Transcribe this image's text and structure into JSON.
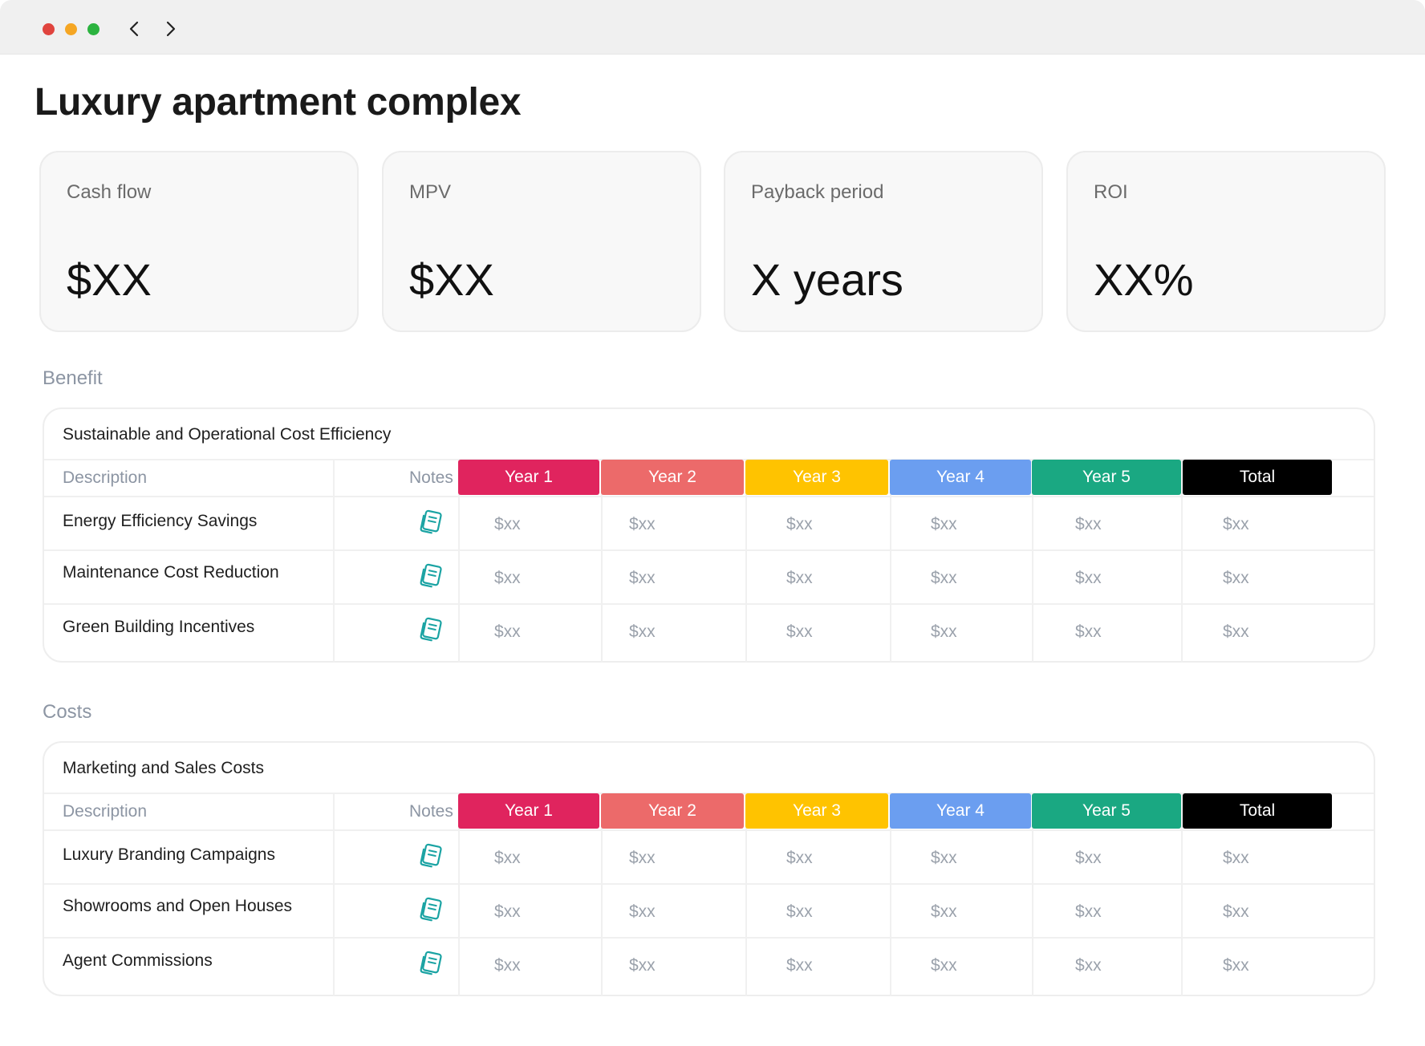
{
  "page": {
    "title": "Luxury apartment complex"
  },
  "kpis": [
    {
      "label": "Cash flow",
      "value": "$XX"
    },
    {
      "label": "MPV",
      "value": "$XX"
    },
    {
      "label": "Payback period",
      "value": "X years"
    },
    {
      "label": "ROI",
      "value": "XX%"
    }
  ],
  "sections": [
    {
      "label": "Benefit",
      "table_title": "Sustainable and Operational Cost Efficiency",
      "rows": [
        {
          "description": "Energy Efficiency Savings",
          "values": [
            "$xx",
            "$xx",
            "$xx",
            "$xx",
            "$xx",
            "$xx"
          ]
        },
        {
          "description": "Maintenance Cost Reduction",
          "values": [
            "$xx",
            "$xx",
            "$xx",
            "$xx",
            "$xx",
            "$xx"
          ]
        },
        {
          "description": "Green Building Incentives",
          "values": [
            "$xx",
            "$xx",
            "$xx",
            "$xx",
            "$xx",
            "$xx"
          ]
        }
      ]
    },
    {
      "label": "Costs",
      "table_title": "Marketing and Sales Costs",
      "rows": [
        {
          "description": "Luxury Branding Campaigns",
          "values": [
            "$xx",
            "$xx",
            "$xx",
            "$xx",
            "$xx",
            "$xx"
          ]
        },
        {
          "description": "Showrooms and Open Houses",
          "values": [
            "$xx",
            "$xx",
            "$xx",
            "$xx",
            "$xx",
            "$xx"
          ]
        },
        {
          "description": "Agent Commissions",
          "values": [
            "$xx",
            "$xx",
            "$xx",
            "$xx",
            "$xx",
            "$xx"
          ]
        }
      ]
    }
  ],
  "columns": {
    "description": "Description",
    "notes": "Notes",
    "years": [
      {
        "label": "Year 1",
        "color": "#e0245e"
      },
      {
        "label": "Year 2",
        "color": "#ec6a6a"
      },
      {
        "label": "Year 3",
        "color": "#ffc300"
      },
      {
        "label": "Year 4",
        "color": "#6b9ef0"
      },
      {
        "label": "Year 5",
        "color": "#1aa882"
      },
      {
        "label": "Total",
        "color": "#000000"
      }
    ]
  },
  "icons": {
    "notes": "notes-icon",
    "back": "chevron-left-icon",
    "forward": "chevron-right-icon"
  },
  "colors": {
    "notes_icon": "#1aa3a3"
  }
}
